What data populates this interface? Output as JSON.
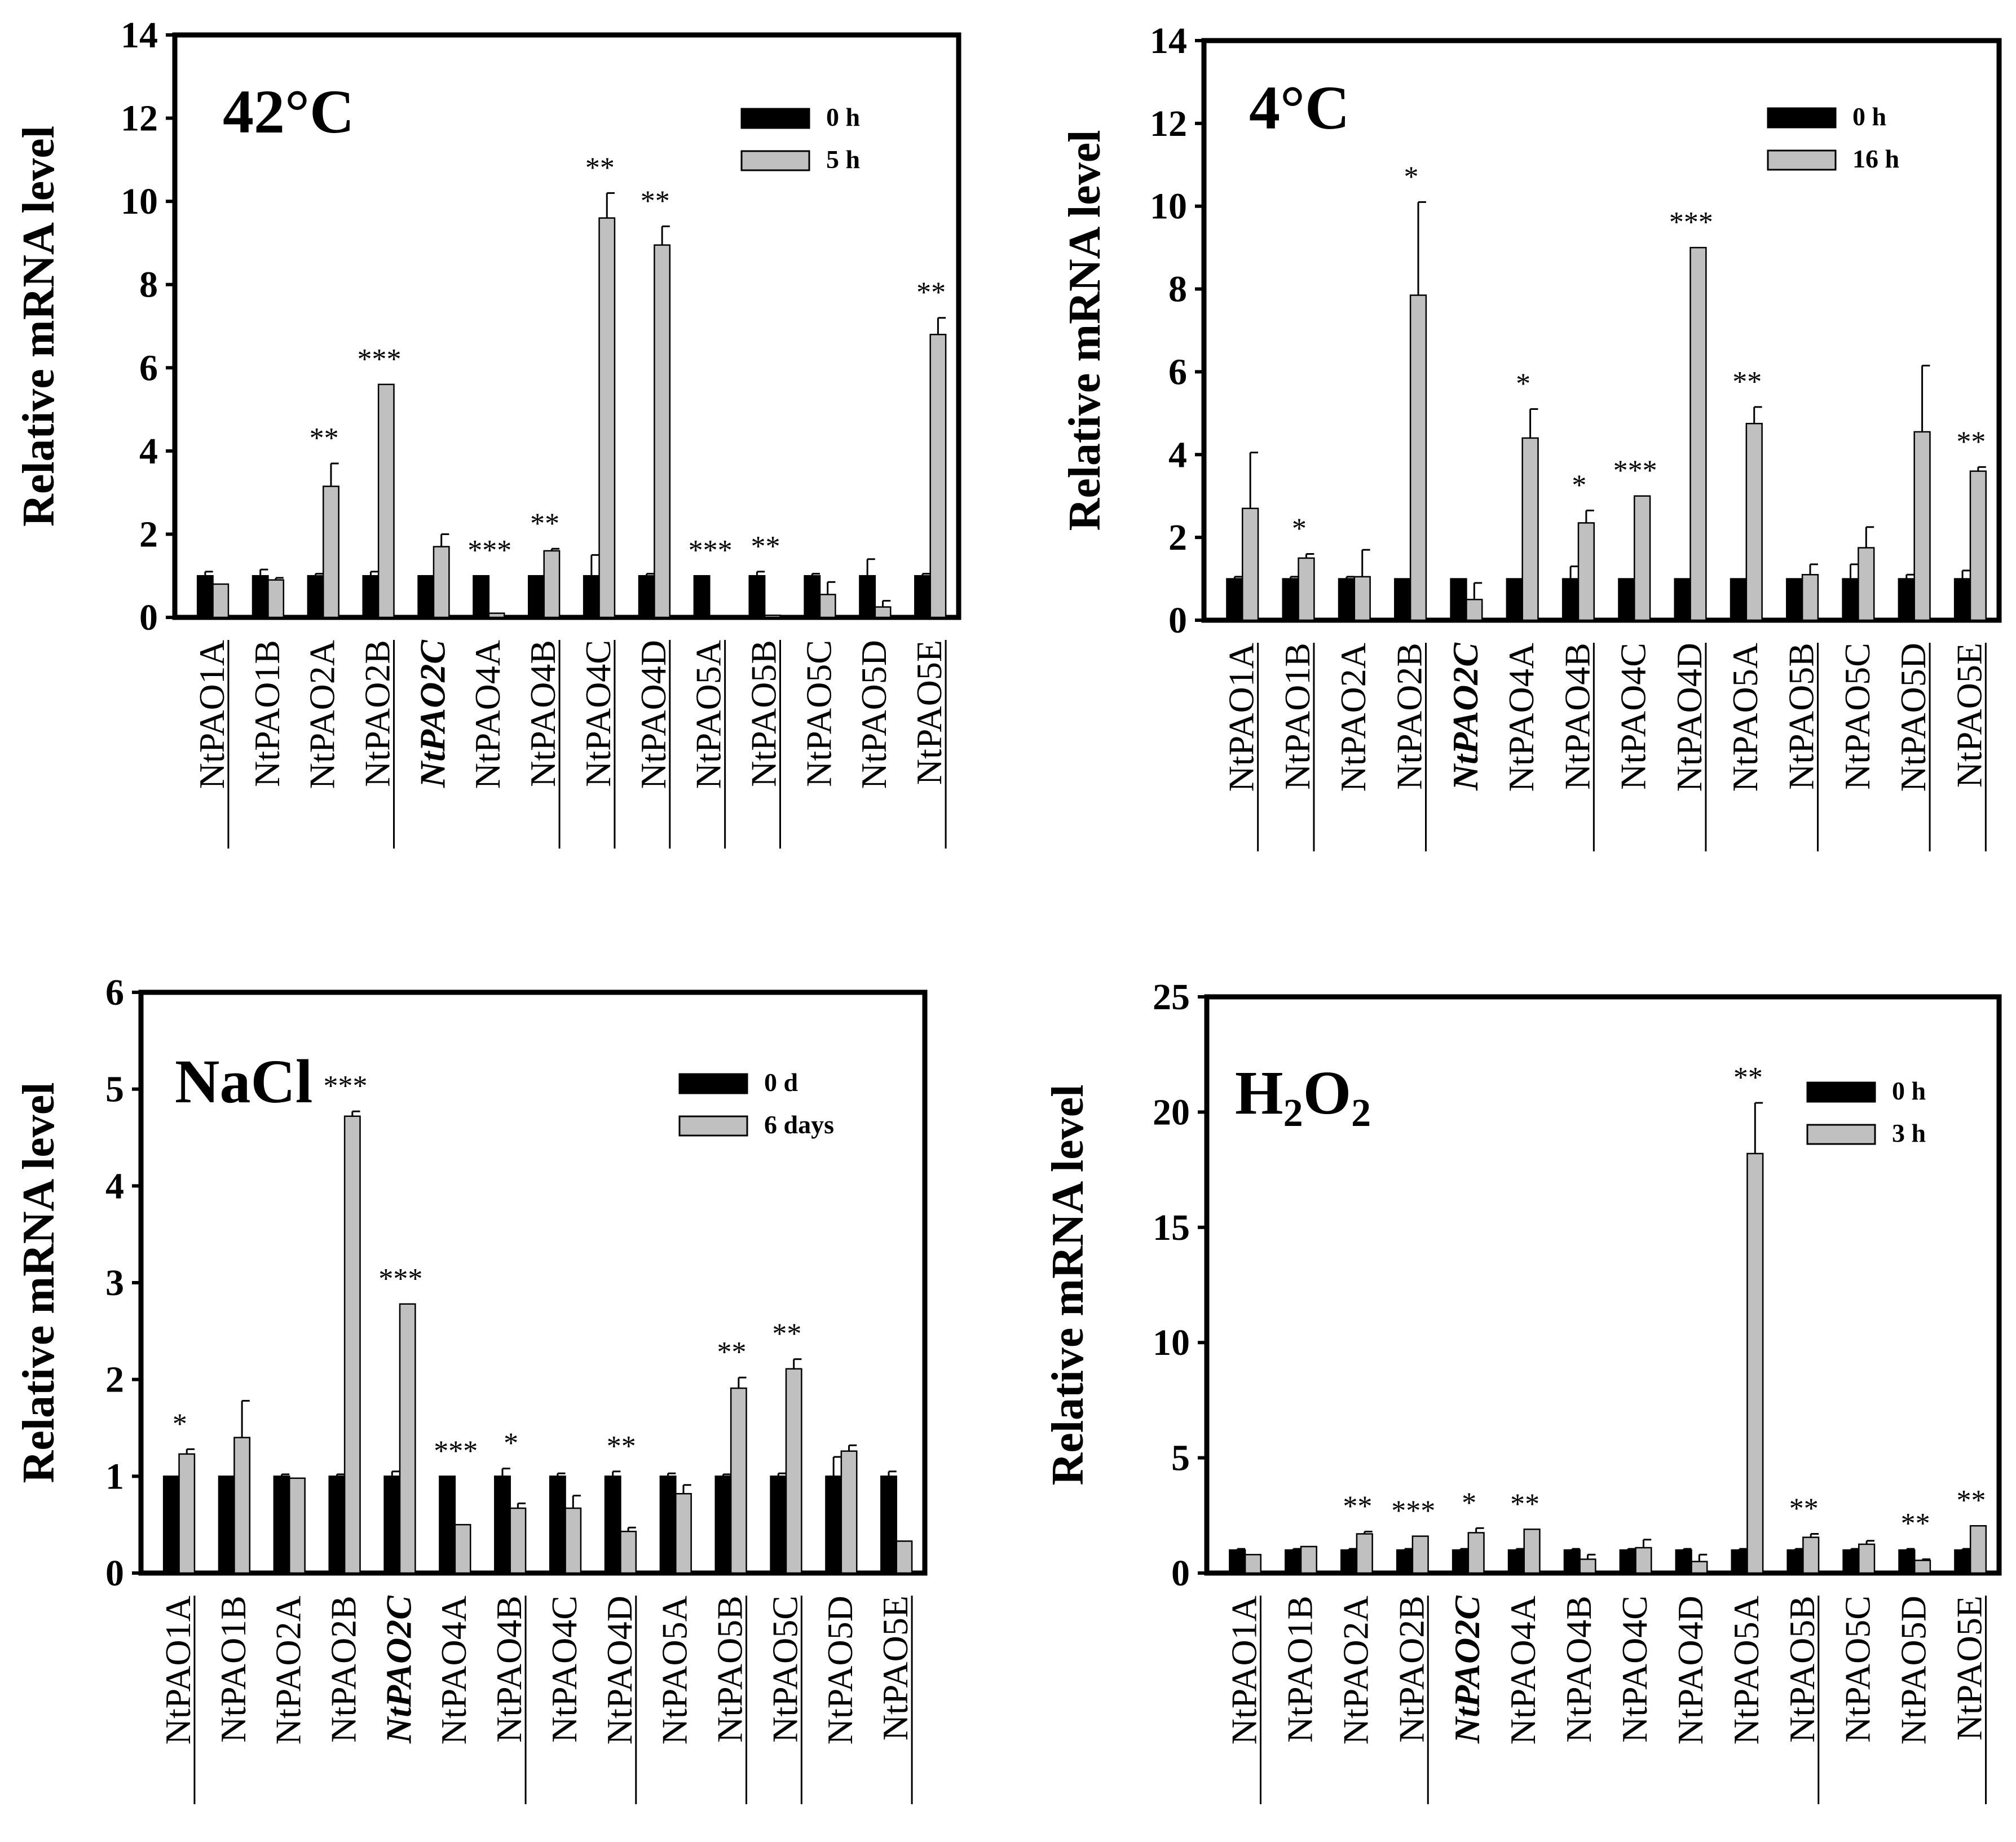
{
  "chart_data": [
    {
      "type": "bar",
      "title": "42°C",
      "ylabel": "Relative mRNA level",
      "xlabel": "",
      "ylim": [
        0,
        14
      ],
      "yticks": [
        0,
        2,
        4,
        6,
        8,
        10,
        12,
        14
      ],
      "categories": [
        "NtPAO1A",
        "NtPAO1B",
        "NtPAO2A",
        "NtPAO2B",
        "NtPAO2C",
        "NtPAO4A",
        "NtPAO4B",
        "NtPAO4C",
        "NtPAO4D",
        "NtPAO5A",
        "NtPAO5B",
        "NtPAO5C",
        "NtPAO5D",
        "NtPAO5E"
      ],
      "underlined": [
        true,
        false,
        false,
        true,
        false,
        false,
        true,
        true,
        true,
        true,
        true,
        false,
        false,
        true
      ],
      "emphasized": "NtPAO2C",
      "legend_position": "top-right",
      "series": [
        {
          "name": "0 h",
          "color": "#000000",
          "values": [
            1.0,
            1.0,
            1.0,
            1.0,
            1.0,
            1.0,
            1.0,
            1.0,
            1.0,
            1.0,
            1.0,
            1.0,
            1.0,
            1.0
          ],
          "errors": [
            0.1,
            0.15,
            0.05,
            0.1,
            0.0,
            0.0,
            0.0,
            0.5,
            0.05,
            0.0,
            0.1,
            0.05,
            0.4,
            0.05
          ]
        },
        {
          "name": "5 h",
          "color": "#c0c0c0",
          "values": [
            0.8,
            0.9,
            3.15,
            5.6,
            1.7,
            0.1,
            1.6,
            9.6,
            8.95,
            0.02,
            0.05,
            0.55,
            0.25,
            6.8
          ],
          "errors": [
            0.0,
            0.05,
            0.55,
            0.0,
            0.3,
            0.0,
            0.05,
            0.6,
            0.45,
            0.0,
            0.0,
            0.3,
            0.15,
            0.4
          ]
        }
      ],
      "significance": [
        "",
        "",
        "**",
        "***",
        "",
        "***",
        "**",
        "**",
        "**",
        "***",
        "**",
        "",
        "",
        "**"
      ]
    },
    {
      "type": "bar",
      "title": "4°C",
      "ylabel": "Relative mRNA level",
      "xlabel": "",
      "ylim": [
        0,
        14
      ],
      "yticks": [
        0,
        2,
        4,
        6,
        8,
        10,
        12,
        14
      ],
      "categories": [
        "NtPAO1A",
        "NtPAO1B",
        "NtPAO2A",
        "NtPAO2B",
        "NtPAO2C",
        "NtPAO4A",
        "NtPAO4B",
        "NtPAO4C",
        "NtPAO4D",
        "NtPAO5A",
        "NtPAO5B",
        "NtPAO5C",
        "NtPAO5D",
        "NtPAO5E"
      ],
      "underlined": [
        true,
        true,
        false,
        true,
        false,
        false,
        true,
        false,
        true,
        false,
        true,
        false,
        true,
        true
      ],
      "emphasized": "NtPAO2C",
      "legend_position": "top-right",
      "series": [
        {
          "name": "0 h",
          "color": "#000000",
          "values": [
            1.0,
            1.0,
            1.0,
            1.0,
            1.0,
            1.0,
            1.0,
            1.0,
            1.0,
            1.0,
            1.0,
            1.0,
            1.0,
            1.0
          ],
          "errors": [
            0.05,
            0.05,
            0.05,
            0.0,
            0.0,
            0.0,
            0.3,
            0.0,
            0.0,
            0.0,
            0.0,
            0.35,
            0.1,
            0.2
          ]
        },
        {
          "name": "16 h",
          "color": "#c0c0c0",
          "values": [
            2.7,
            1.5,
            1.05,
            7.85,
            0.5,
            4.4,
            2.35,
            3.0,
            9.0,
            4.75,
            1.1,
            1.75,
            4.55,
            3.6
          ],
          "errors": [
            1.35,
            0.1,
            0.65,
            2.25,
            0.4,
            0.7,
            0.3,
            0.0,
            0.0,
            0.4,
            0.25,
            0.5,
            1.6,
            0.1
          ]
        }
      ],
      "significance": [
        "",
        "*",
        "",
        "*",
        "",
        "*",
        "*",
        "***",
        "***",
        "**",
        "",
        "",
        "",
        "**"
      ]
    },
    {
      "type": "bar",
      "title": "NaCl",
      "ylabel": "Relative mRNA level",
      "xlabel": "",
      "ylim": [
        0,
        6
      ],
      "yticks": [
        0,
        1,
        2,
        3,
        4,
        5,
        6
      ],
      "categories": [
        "NtPAO1A",
        "NtPAO1B",
        "NtPAO2A",
        "NtPAO2B",
        "NtPAO2C",
        "NtPAO4A",
        "NtPAO4B",
        "NtPAO4C",
        "NtPAO4D",
        "NtPAO5A",
        "NtPAO5B",
        "NtPAO5C",
        "NtPAO5D",
        "NtPAO5E"
      ],
      "underlined": [
        true,
        false,
        false,
        false,
        false,
        false,
        true,
        false,
        true,
        false,
        true,
        true,
        false,
        true
      ],
      "emphasized": "NtPAO2C",
      "legend_position": "top-right",
      "series": [
        {
          "name": "0 d",
          "color": "#000000",
          "values": [
            1.0,
            1.0,
            1.0,
            1.0,
            1.0,
            1.0,
            1.0,
            1.0,
            1.0,
            1.0,
            1.0,
            1.0,
            1.0,
            1.0
          ],
          "errors": [
            0.0,
            0.0,
            0.02,
            0.02,
            0.05,
            0.0,
            0.08,
            0.03,
            0.05,
            0.03,
            0.02,
            0.03,
            0.2,
            0.05
          ]
        },
        {
          "name": "6 days",
          "color": "#c0c0c0",
          "values": [
            1.23,
            1.4,
            0.98,
            4.72,
            2.78,
            0.5,
            0.67,
            0.67,
            0.43,
            0.82,
            1.91,
            2.11,
            1.26,
            0.33
          ],
          "errors": [
            0.05,
            0.38,
            0.0,
            0.05,
            0.0,
            0.0,
            0.05,
            0.13,
            0.04,
            0.09,
            0.11,
            0.1,
            0.06,
            0.0
          ]
        }
      ],
      "significance": [
        "*",
        "",
        "",
        "***",
        "***",
        "***",
        "*",
        "",
        "**",
        "",
        "**",
        "**",
        "",
        ""
      ]
    },
    {
      "type": "bar",
      "title": "H2O2",
      "ylabel": "Relative mRNA level",
      "xlabel": "",
      "ylim": [
        0,
        25
      ],
      "yticks": [
        0,
        5,
        10,
        15,
        20,
        25
      ],
      "categories": [
        "NtPAO1A",
        "NtPAO1B",
        "NtPAO2A",
        "NtPAO2B",
        "NtPAO2C",
        "NtPAO4A",
        "NtPAO4B",
        "NtPAO4C",
        "NtPAO4D",
        "NtPAO5A",
        "NtPAO5B",
        "NtPAO5C",
        "NtPAO5D",
        "NtPAO5E"
      ],
      "underlined": [
        true,
        false,
        false,
        true,
        false,
        false,
        false,
        false,
        false,
        false,
        true,
        false,
        false,
        true
      ],
      "emphasized": "NtPAO2C",
      "legend_position": "top-right",
      "series": [
        {
          "name": "0 h",
          "color": "#000000",
          "values": [
            1.0,
            1.0,
            1.0,
            1.0,
            1.0,
            1.0,
            1.0,
            1.0,
            1.0,
            1.0,
            1.0,
            1.0,
            1.0,
            1.0
          ],
          "errors": [
            0.05,
            0.05,
            0.05,
            0.05,
            0.05,
            0.05,
            0.05,
            0.05,
            0.05,
            0.05,
            0.05,
            0.05,
            0.05,
            0.05
          ]
        },
        {
          "name": "3 h",
          "color": "#c0c0c0",
          "values": [
            0.8,
            1.15,
            1.7,
            1.6,
            1.75,
            1.9,
            0.6,
            1.1,
            0.5,
            18.2,
            1.55,
            1.25,
            0.55,
            2.05
          ],
          "errors": [
            0.0,
            0.0,
            0.1,
            0.0,
            0.2,
            0.0,
            0.2,
            0.35,
            0.3,
            2.2,
            0.15,
            0.15,
            0.05,
            0.0
          ]
        }
      ],
      "significance": [
        "",
        "",
        "**",
        "***",
        "*",
        "**",
        "",
        "",
        "",
        "**",
        "**",
        "",
        "**",
        "**"
      ]
    }
  ]
}
